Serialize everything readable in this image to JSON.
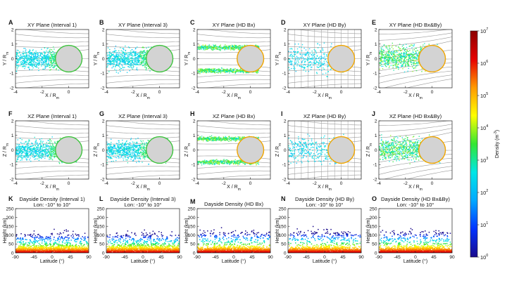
{
  "chart_data": [
    {
      "panel": "A",
      "type": "scatter",
      "title": "XY Plane (Interval 1)",
      "xlabel": "X / R_m",
      "ylabel": "Y / R_m",
      "xlim": [
        -4,
        1.5
      ],
      "ylim": [
        -2,
        2
      ],
      "x_ticks": [
        "-4",
        "-2",
        "0"
      ],
      "y_ticks": [
        "-2",
        "-1",
        "0",
        "1",
        "2"
      ],
      "style": "broad-blue"
    },
    {
      "panel": "B",
      "type": "scatter",
      "title": "XY Plane (Interval 3)",
      "xlabel": "X / R_m",
      "ylabel": "Y / R_m",
      "xlim": [
        -4,
        1.5
      ],
      "ylim": [
        -2,
        2
      ],
      "x_ticks": [
        "-4",
        "-2",
        "0"
      ],
      "y_ticks": [
        "-2",
        "-1",
        "0",
        "1",
        "2"
      ],
      "style": "broad-blue"
    },
    {
      "panel": "C",
      "type": "scatter",
      "title": "XY Plane (HD Bx)",
      "xlabel": "X / R_m",
      "ylabel": "Y / R_m",
      "xlim": [
        -4,
        1.5
      ],
      "ylim": [
        -2,
        2
      ],
      "x_ticks": [
        "-4",
        "-2",
        "0"
      ],
      "y_ticks": [
        "-2",
        "-1",
        "0",
        "1",
        "2"
      ],
      "style": "dual-band"
    },
    {
      "panel": "D",
      "type": "scatter",
      "title": "XY Plane (HD By)",
      "xlabel": "X / R_m",
      "ylabel": "Y / R_m",
      "xlim": [
        -4,
        1.5
      ],
      "ylim": [
        -2,
        2
      ],
      "x_ticks": [
        "-4",
        "-2",
        "0"
      ],
      "y_ticks": [
        "-2",
        "-1",
        "0",
        "1",
        "2"
      ],
      "style": "sparse"
    },
    {
      "panel": "E",
      "type": "scatter",
      "title": "XY Plane (HD Bx&By)",
      "xlabel": "X / R_m",
      "ylabel": "Y / R_m",
      "xlim": [
        -4,
        1.5
      ],
      "ylim": [
        -2,
        2
      ],
      "x_ticks": [
        "-4",
        "-2",
        "0"
      ],
      "y_ticks": [
        "-2",
        "-1",
        "0",
        "1",
        "2"
      ],
      "style": "twisted"
    },
    {
      "panel": "F",
      "type": "scatter",
      "title": "XZ Plane (Interval 1)",
      "xlabel": "X / R_m",
      "ylabel": "Z / R_m",
      "xlim": [
        -4,
        1.5
      ],
      "ylim": [
        -2,
        2
      ],
      "x_ticks": [
        "-4",
        "-2",
        "0"
      ],
      "y_ticks": [
        "-2",
        "-1",
        "0",
        "1",
        "2"
      ],
      "style": "broad-blue"
    },
    {
      "panel": "G",
      "type": "scatter",
      "title": "XZ Plane (Interval 3)",
      "xlabel": "X / R_m",
      "ylabel": "Z / R_m",
      "xlim": [
        -4,
        1.5
      ],
      "ylim": [
        -2,
        2
      ],
      "x_ticks": [
        "-4",
        "-2",
        "0"
      ],
      "y_ticks": [
        "-2",
        "-1",
        "0",
        "1",
        "2"
      ],
      "style": "broad-blue"
    },
    {
      "panel": "H",
      "type": "scatter",
      "title": "XZ Plane (HD Bx)",
      "xlabel": "X / R_m",
      "ylabel": "Z / R_m",
      "xlim": [
        -4,
        1.5
      ],
      "ylim": [
        -2,
        2
      ],
      "x_ticks": [
        "-4",
        "-2",
        "0"
      ],
      "y_ticks": [
        "-2",
        "-1",
        "0",
        "1",
        "2"
      ],
      "style": "dual-band"
    },
    {
      "panel": "I",
      "type": "scatter",
      "title": "XZ Plane (HD By)",
      "xlabel": "X / R_m",
      "ylabel": "Z / R_m",
      "xlim": [
        -4,
        1.5
      ],
      "ylim": [
        -2,
        2
      ],
      "x_ticks": [
        "-4",
        "-2",
        "0"
      ],
      "y_ticks": [
        "-2",
        "-1",
        "0",
        "1",
        "2"
      ],
      "style": "sparse"
    },
    {
      "panel": "J",
      "type": "scatter",
      "title": "XZ Plane (HD Bx&By)",
      "xlabel": "X / R_m",
      "ylabel": "Z / R_m",
      "xlim": [
        -4,
        1.5
      ],
      "ylim": [
        -2,
        2
      ],
      "x_ticks": [
        "-4",
        "-2",
        "0"
      ],
      "y_ticks": [
        "-2",
        "-1",
        "0",
        "1",
        "2"
      ],
      "style": "twisted"
    },
    {
      "panel": "K",
      "type": "scatter",
      "title": "Dayside Density (Interval 1)",
      "subtitle": "Lon: -10° to 10°",
      "xlabel": "Latitude (°)",
      "ylabel": "Height (km)",
      "xlim": [
        -90,
        90
      ],
      "ylim": [
        0,
        250
      ],
      "x_ticks": [
        "-90",
        "-45",
        "0",
        "45",
        "90"
      ],
      "y_ticks": [
        "0",
        "50",
        "100",
        "150",
        "200",
        "250"
      ],
      "style": "wide"
    },
    {
      "panel": "L",
      "type": "scatter",
      "title": "Dayside Density (Interval 3)",
      "subtitle": "Lon: -10° to 10°",
      "xlabel": "Latitude (°)",
      "ylabel": "Height (km)",
      "xlim": [
        -90,
        90
      ],
      "ylim": [
        0,
        250
      ],
      "x_ticks": [
        "-90",
        "-45",
        "0",
        "45",
        "90"
      ],
      "y_ticks": [
        "0",
        "50",
        "100",
        "150",
        "200",
        "250"
      ],
      "style": "wide"
    },
    {
      "panel": "M",
      "type": "scatter",
      "title": "Dayside Density (HD Bx)",
      "xlabel": "Latitude (°)",
      "ylabel": "Height (km)",
      "xlim": [
        -90,
        90
      ],
      "ylim": [
        0,
        250
      ],
      "x_ticks": [
        "-90",
        "-45",
        "0",
        "45",
        "90"
      ],
      "y_ticks": [
        "0",
        "50",
        "100",
        "150",
        "200",
        "250"
      ],
      "style": "narrow"
    },
    {
      "panel": "N",
      "type": "scatter",
      "title": "Dayside Density (HD By)",
      "subtitle": "Lon: -10° to 10°",
      "xlabel": "Latitude (°)",
      "ylabel": "Height (km)",
      "xlim": [
        -90,
        90
      ],
      "ylim": [
        0,
        250
      ],
      "x_ticks": [
        "-90",
        "-45",
        "0",
        "45",
        "90"
      ],
      "y_ticks": [
        "0",
        "50",
        "100",
        "150",
        "200",
        "250"
      ],
      "style": "narrow"
    },
    {
      "panel": "O",
      "type": "scatter",
      "title": "Dayside Density (HD Bx&By)",
      "subtitle": "Lon: -10° to 10°",
      "xlabel": "Latitude (°)",
      "ylabel": "Height (km)",
      "xlim": [
        -90,
        90
      ],
      "ylim": [
        0,
        250
      ],
      "x_ticks": [
        "-90",
        "-45",
        "0",
        "45",
        "90"
      ],
      "y_ticks": [
        "0",
        "50",
        "100",
        "150",
        "200",
        "250"
      ],
      "style": "narrow"
    }
  ],
  "colorbar": {
    "label": "Density (m^-3)",
    "scale": "log",
    "range": [
      1,
      10000000
    ],
    "ticks": [
      {
        "base": "10",
        "exp": "0"
      },
      {
        "base": "10",
        "exp": "1"
      },
      {
        "base": "10",
        "exp": "2"
      },
      {
        "base": "10",
        "exp": "3"
      },
      {
        "base": "10",
        "exp": "4"
      },
      {
        "base": "10",
        "exp": "5"
      },
      {
        "base": "10",
        "exp": "6"
      },
      {
        "base": "10",
        "exp": "7"
      }
    ],
    "colors": [
      "#1a0a8c",
      "#0033ff",
      "#00a8ff",
      "#00e6e6",
      "#33e633",
      "#ffff00",
      "#ff9900",
      "#e60000",
      "#8c0000"
    ]
  },
  "planet_color": "#d3d3d3",
  "planet_edge_colors": {
    "interval": "#3fc43f",
    "hd": "#f0a500"
  }
}
